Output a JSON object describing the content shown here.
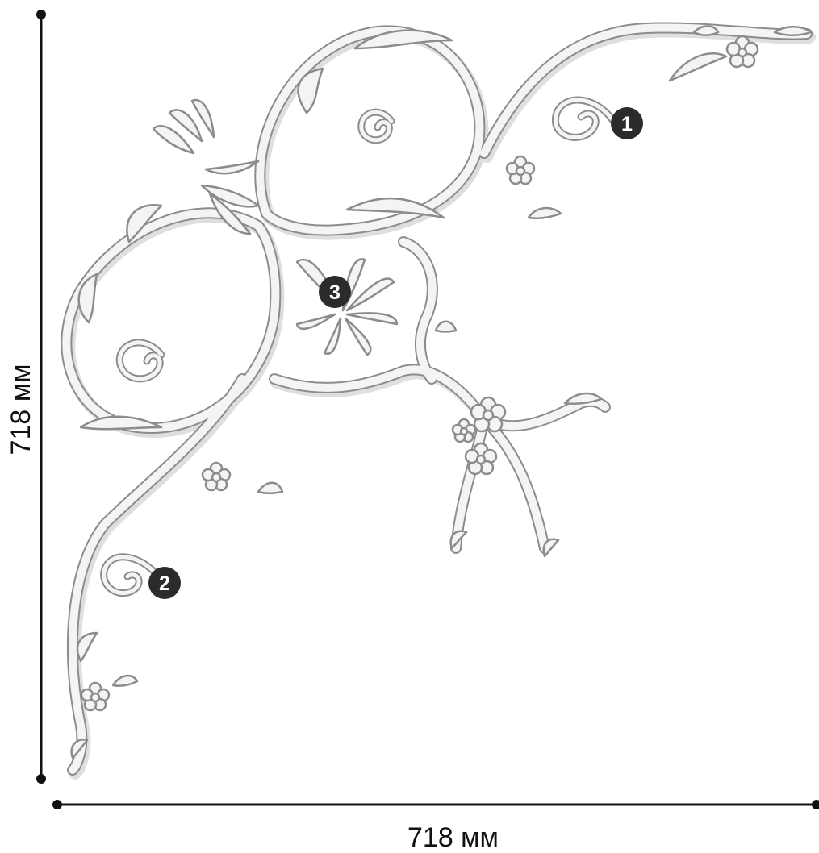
{
  "dimensions": {
    "width_label": "718 мм",
    "height_label": "718 мм"
  },
  "markers": [
    {
      "label": "1"
    },
    {
      "label": "2"
    },
    {
      "label": "3"
    }
  ],
  "colors": {
    "ornament_fill": "#f4f4f4",
    "ornament_stroke": "#8c8c8c",
    "ornament_shadow": "#c9c9c9",
    "dimension_line": "#111111",
    "marker_fill": "#2b2b2b",
    "marker_text": "#ffffff"
  }
}
